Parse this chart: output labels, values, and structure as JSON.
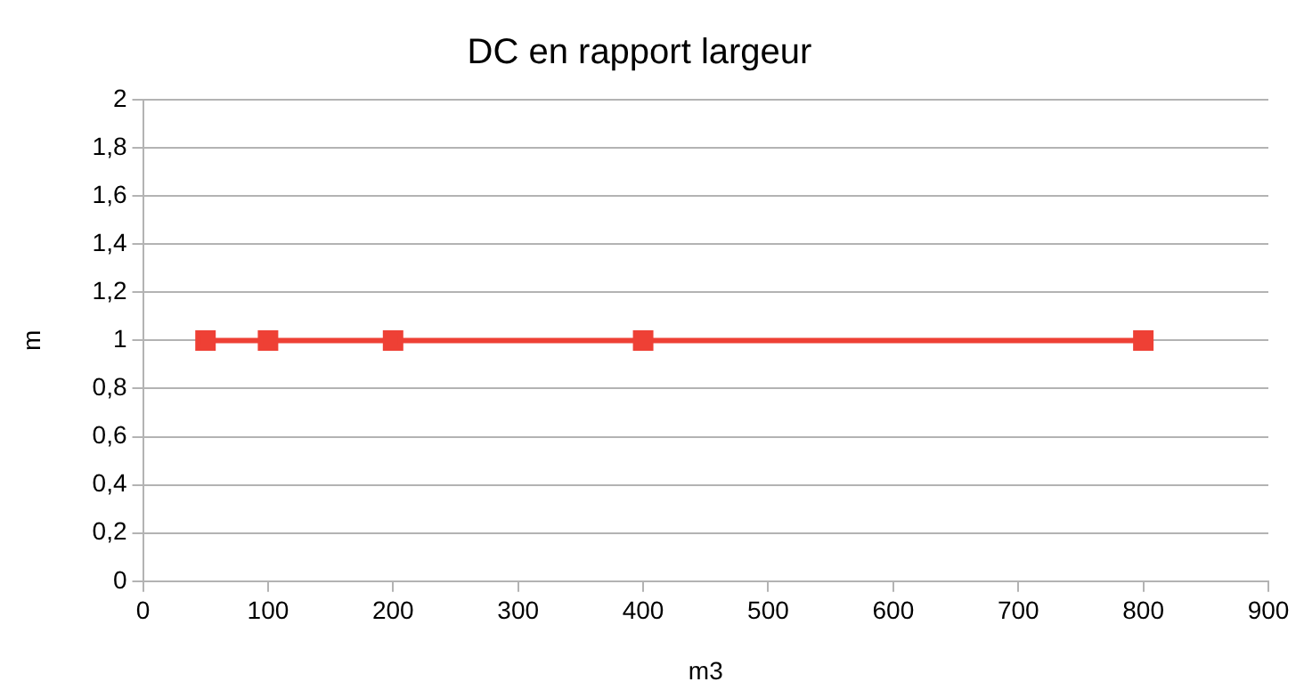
{
  "chart_data": {
    "type": "line",
    "title": "DC en rapport largeur",
    "xlabel": "m3",
    "ylabel": "m",
    "x": [
      50,
      100,
      200,
      400,
      800
    ],
    "series": [
      {
        "color": "#ee4035",
        "values": [
          1,
          1,
          1,
          1,
          1
        ]
      }
    ],
    "xlim": [
      0,
      900
    ],
    "xticks": [
      0,
      100,
      200,
      300,
      400,
      500,
      600,
      700,
      800,
      900
    ],
    "ylim": [
      0,
      2
    ],
    "yticks": [
      0,
      {
        "value": 0.2,
        "label": "0,2"
      },
      {
        "value": 0.4,
        "label": "0,4"
      },
      {
        "value": 0.6,
        "label": "0,6"
      },
      {
        "value": 0.8,
        "label": "0,8"
      },
      1,
      {
        "value": 1.2,
        "label": "1,2"
      },
      {
        "value": 1.4,
        "label": "1,4"
      },
      {
        "value": 1.6,
        "label": "1,6"
      },
      {
        "value": 1.8,
        "label": "1,8"
      },
      2
    ],
    "grid": "y",
    "marker": "square",
    "line_style": "solid",
    "legend": false
  }
}
